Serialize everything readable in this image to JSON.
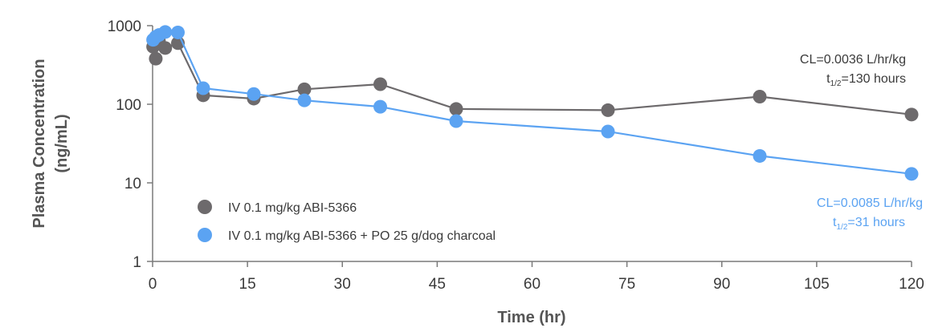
{
  "chart_data": {
    "type": "line",
    "title": "",
    "xlabel": "Time (hr)",
    "ylabel_line1": "Plasma Concentration",
    "ylabel_line2": "(ng/mL)",
    "y_scale": "log",
    "xlim": [
      0,
      120
    ],
    "ylim": [
      1,
      1000
    ],
    "x_ticks": [
      "0",
      "15",
      "30",
      "45",
      "60",
      "75",
      "90",
      "105",
      "120"
    ],
    "y_ticks": [
      "1",
      "10",
      "100",
      "1000"
    ],
    "grid": false,
    "legend_position": "bottom-left",
    "series": [
      {
        "name": "IV 0.1 mg/kg ABI-5366",
        "color": "#6d6a6c",
        "x": [
          0.083,
          0.5,
          1,
          2,
          4,
          8,
          16,
          24,
          36,
          48,
          72,
          96,
          120
        ],
        "y": [
          540,
          380,
          640,
          520,
          600,
          130,
          118,
          155,
          180,
          87,
          84,
          125,
          74
        ]
      },
      {
        "name": "IV 0.1 mg/kg ABI-5366 + PO 25 g/dog charcoal",
        "color": "#5ba3f2",
        "x": [
          0.083,
          0.5,
          1,
          2,
          4,
          8,
          16,
          24,
          36,
          48,
          72,
          96,
          120
        ],
        "y": [
          660,
          720,
          760,
          830,
          820,
          160,
          135,
          112,
          93,
          61,
          45,
          22,
          13
        ]
      }
    ],
    "annotations": [
      {
        "cl": "CL=0.0036 L/hr/kg",
        "t_main": "t",
        "t_sub": "1/2",
        "t_value": "=130 hours",
        "color": "#3a3a3a"
      },
      {
        "cl": "CL=0.0085 L/hr/kg",
        "t_main": "t",
        "t_sub": "1/2",
        "t_value": "=31 hours",
        "color": "#5ba3f2"
      }
    ]
  }
}
